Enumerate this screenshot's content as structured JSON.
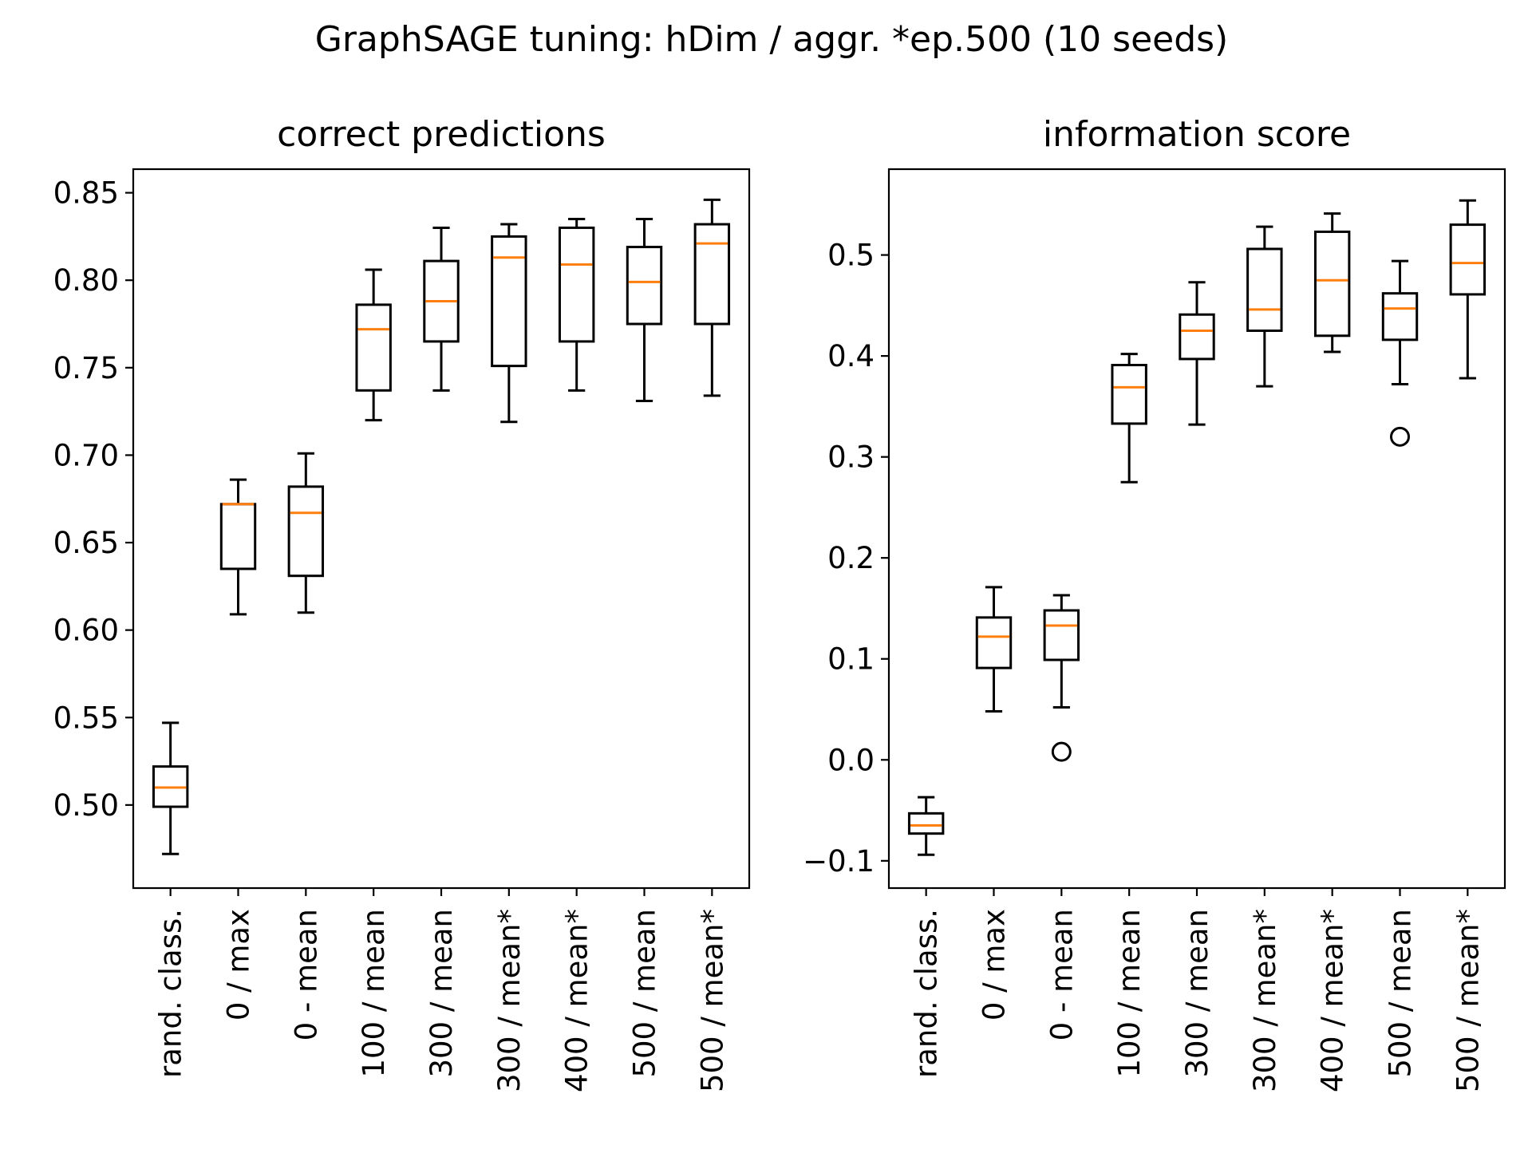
{
  "figure": {
    "title": "GraphSAGE tuning: hDim / aggr. *ep.500 (10 seeds)"
  },
  "colors": {
    "box": "#000000",
    "median": "#ff7f0e",
    "outlier": "#000000"
  },
  "chart_data": [
    {
      "type": "box",
      "title": "correct predictions",
      "xlabel": "",
      "ylabel": "",
      "categories": [
        "rand. class.",
        "0 / max",
        "0 - mean",
        "100 / mean",
        "300 / mean",
        "300 / mean*",
        "400 / mean*",
        "500 / mean",
        "500 / mean*"
      ],
      "yticks": [
        0.5,
        0.55,
        0.6,
        0.65,
        0.7,
        0.75,
        0.8,
        0.85
      ],
      "ytick_labels": [
        "0.50",
        "0.55",
        "0.60",
        "0.65",
        "0.70",
        "0.75",
        "0.80",
        "0.85"
      ],
      "ylim": [
        0.4525,
        0.8635
      ],
      "grid": false,
      "boxes": [
        {
          "whislo": 0.472,
          "q1": 0.499,
          "med": 0.51,
          "q3": 0.522,
          "whishi": 0.547,
          "fliers": []
        },
        {
          "whislo": 0.609,
          "q1": 0.635,
          "med": 0.672,
          "q3": 0.672,
          "whishi": 0.686,
          "fliers": []
        },
        {
          "whislo": 0.61,
          "q1": 0.631,
          "med": 0.667,
          "q3": 0.682,
          "whishi": 0.701,
          "fliers": []
        },
        {
          "whislo": 0.72,
          "q1": 0.737,
          "med": 0.772,
          "q3": 0.786,
          "whishi": 0.806,
          "fliers": []
        },
        {
          "whislo": 0.737,
          "q1": 0.765,
          "med": 0.788,
          "q3": 0.811,
          "whishi": 0.83,
          "fliers": []
        },
        {
          "whislo": 0.719,
          "q1": 0.751,
          "med": 0.813,
          "q3": 0.825,
          "whishi": 0.832,
          "fliers": []
        },
        {
          "whislo": 0.737,
          "q1": 0.765,
          "med": 0.809,
          "q3": 0.83,
          "whishi": 0.835,
          "fliers": []
        },
        {
          "whislo": 0.731,
          "q1": 0.775,
          "med": 0.799,
          "q3": 0.819,
          "whishi": 0.835,
          "fliers": []
        },
        {
          "whislo": 0.734,
          "q1": 0.775,
          "med": 0.821,
          "q3": 0.832,
          "whishi": 0.846,
          "fliers": []
        }
      ]
    },
    {
      "type": "box",
      "title": "information score",
      "xlabel": "",
      "ylabel": "",
      "categories": [
        "rand. class.",
        "0 / max",
        "0 - mean",
        "100 / mean",
        "300 / mean",
        "300 / mean*",
        "400 / mean*",
        "500 / mean",
        "500 / mean*"
      ],
      "yticks": [
        -0.1,
        0.0,
        0.1,
        0.2,
        0.3,
        0.4,
        0.5
      ],
      "ytick_labels": [
        "−0.1",
        "0.0",
        "0.1",
        "0.2",
        "0.3",
        "0.4",
        "0.5"
      ],
      "ylim": [
        -0.127,
        0.585
      ],
      "grid": false,
      "boxes": [
        {
          "whislo": -0.094,
          "q1": -0.073,
          "med": -0.065,
          "q3": -0.053,
          "whishi": -0.037,
          "fliers": []
        },
        {
          "whislo": 0.048,
          "q1": 0.091,
          "med": 0.122,
          "q3": 0.141,
          "whishi": 0.171,
          "fliers": []
        },
        {
          "whislo": 0.052,
          "q1": 0.099,
          "med": 0.133,
          "q3": 0.148,
          "whishi": 0.163,
          "fliers": [
            0.008
          ]
        },
        {
          "whislo": 0.275,
          "q1": 0.333,
          "med": 0.369,
          "q3": 0.391,
          "whishi": 0.402,
          "fliers": []
        },
        {
          "whislo": 0.332,
          "q1": 0.397,
          "med": 0.425,
          "q3": 0.441,
          "whishi": 0.473,
          "fliers": []
        },
        {
          "whislo": 0.37,
          "q1": 0.425,
          "med": 0.446,
          "q3": 0.506,
          "whishi": 0.528,
          "fliers": []
        },
        {
          "whislo": 0.404,
          "q1": 0.42,
          "med": 0.475,
          "q3": 0.523,
          "whishi": 0.541,
          "fliers": []
        },
        {
          "whislo": 0.372,
          "q1": 0.416,
          "med": 0.447,
          "q3": 0.462,
          "whishi": 0.494,
          "fliers": [
            0.32
          ]
        },
        {
          "whislo": 0.378,
          "q1": 0.461,
          "med": 0.492,
          "q3": 0.53,
          "whishi": 0.554,
          "fliers": []
        }
      ]
    }
  ]
}
